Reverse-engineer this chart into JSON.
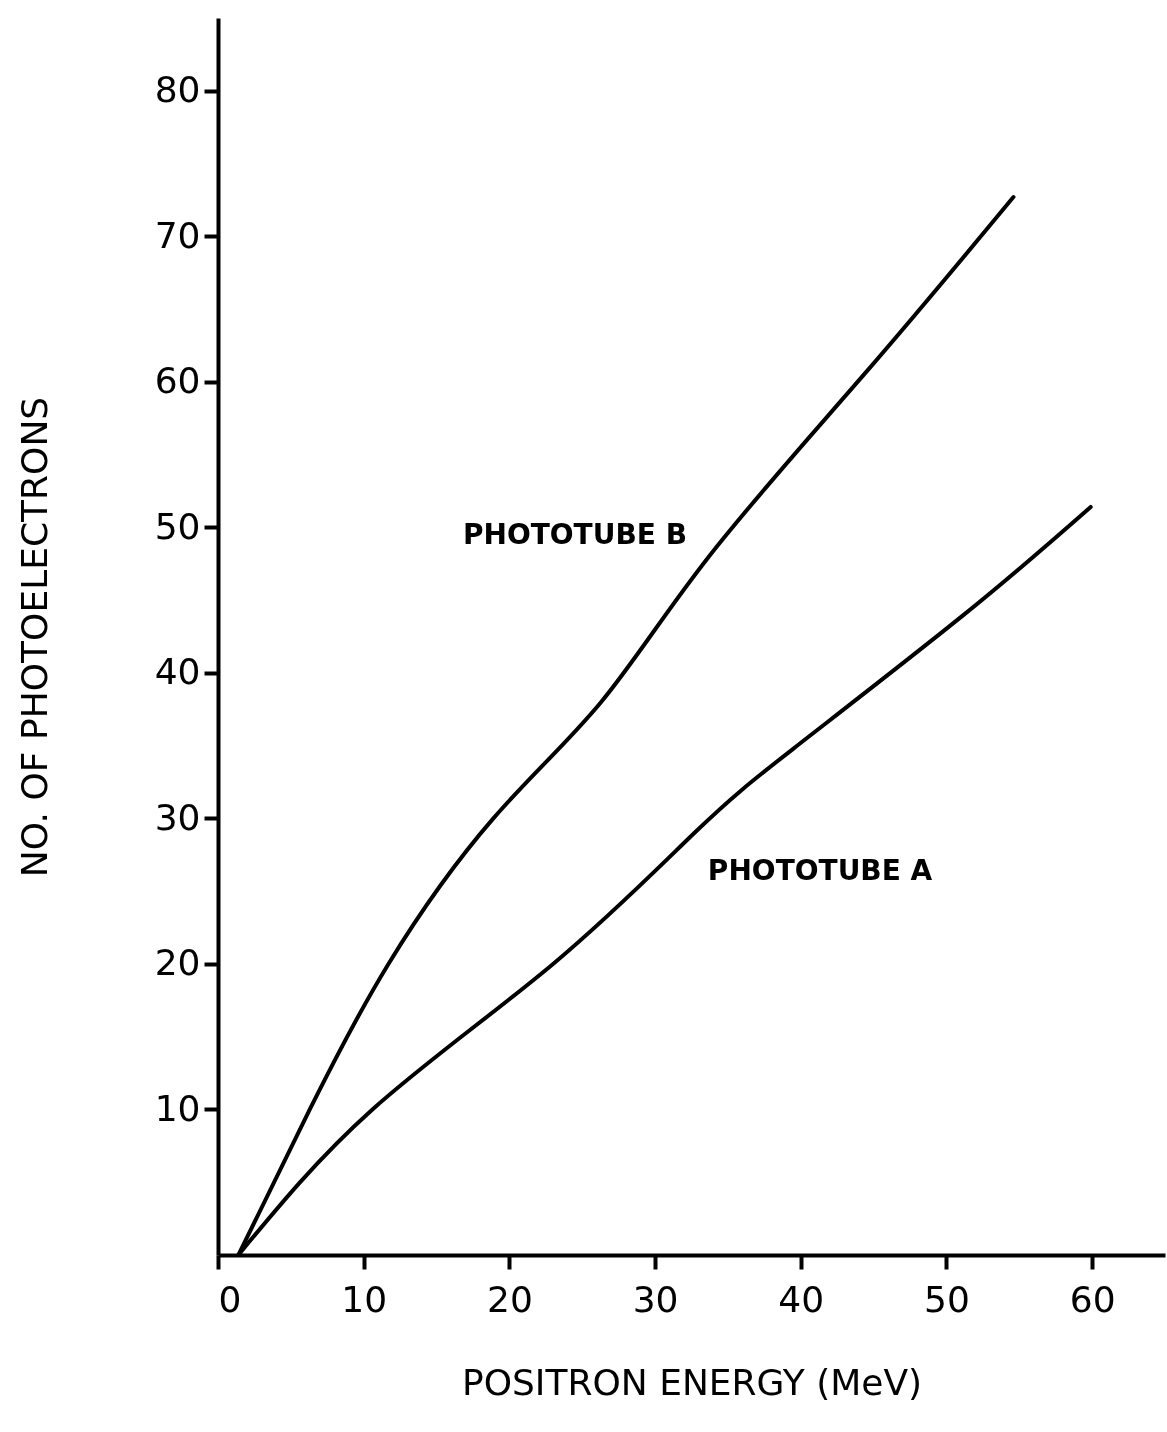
{
  "chart_data": {
    "type": "line",
    "xlabel": "POSITRON  ENERGY  (MeV)",
    "ylabel": "NO.  OF  PHOTOELECTRONS",
    "xlim": [
      0,
      65
    ],
    "ylim": [
      0,
      85
    ],
    "xticks": [
      0,
      10,
      20,
      30,
      40,
      50,
      60
    ],
    "yticks": [
      10,
      20,
      30,
      40,
      50,
      60,
      70,
      80
    ],
    "grid": false,
    "marker": "none",
    "line_style": "solid",
    "series": [
      {
        "name": "PHOTOTUBE  B",
        "color": "#000000",
        "x": [
          1.4,
          6.3,
          11.7,
          18.9,
          26.3,
          33.7,
          44.6,
          54.6
        ],
        "values": [
          0,
          10,
          20,
          30,
          38,
          48,
          60.8,
          72.7
        ]
      },
      {
        "name": "PHOTOTUBE  A",
        "color": "#000000",
        "x": [
          1.4,
          10.6,
          23,
          32.8,
          39.5,
          51.2,
          59.9
        ],
        "values": [
          0,
          10,
          20,
          29.1,
          34.8,
          44,
          51.4
        ]
      }
    ]
  }
}
